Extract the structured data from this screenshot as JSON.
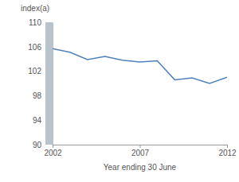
{
  "chart_data": {
    "type": "line",
    "y_label": "index(a)",
    "x_label": "Year ending 30 June",
    "x": [
      2002,
      2003,
      2004,
      2005,
      2006,
      2007,
      2008,
      2009,
      2010,
      2011,
      2012
    ],
    "values": [
      105.7,
      105.1,
      103.9,
      104.4,
      103.8,
      103.5,
      103.7,
      100.6,
      100.9,
      100.0,
      101.0
    ],
    "color": "#4f81bd",
    "xlim": [
      2002,
      2012
    ],
    "xticks": [
      2002,
      2007,
      2012
    ],
    "ylim": [
      90,
      110
    ],
    "yticks": [
      90,
      94,
      98,
      102,
      106,
      110
    ],
    "grid": false
  }
}
